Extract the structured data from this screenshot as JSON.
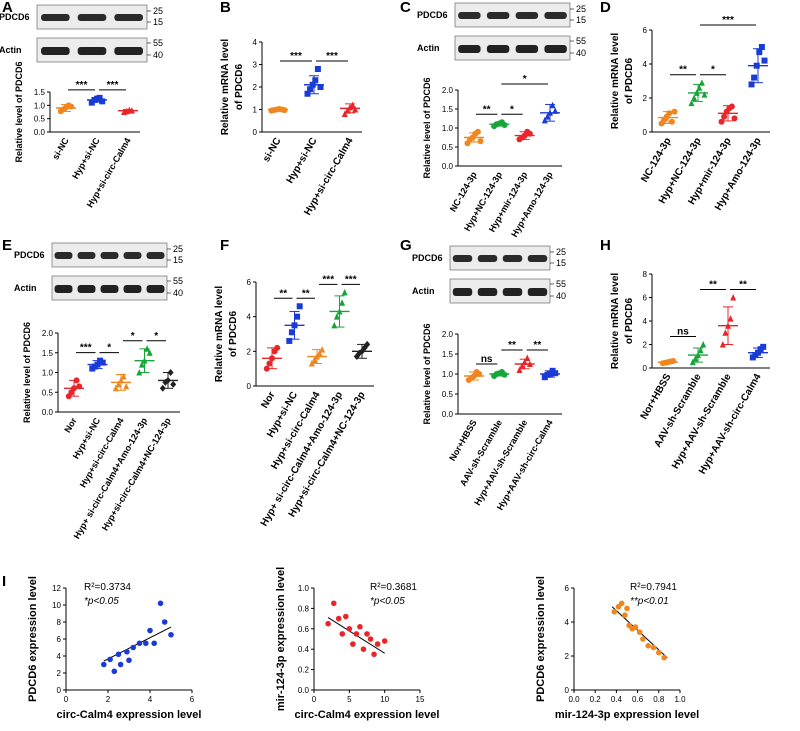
{
  "figure": {
    "A": {
      "label": "A",
      "type": "blot+scatter",
      "blot_gene": "PDCD6",
      "blot_ctrl": "Actin",
      "mw_top": [
        "25",
        "15"
      ],
      "mw_bot": [
        "55",
        "40"
      ],
      "ylabel": "Relative level of PDCD6",
      "ylim": [
        0,
        1.5
      ],
      "yticks": [
        "0.0",
        "0.5",
        "1.0",
        "1.5"
      ],
      "categories": [
        "si-NC",
        "Hyp+si-NC",
        "Hyp+si-circ-Calm4"
      ],
      "colors": [
        "#F0861E",
        "#1A3BD4",
        "#E8262A"
      ],
      "markers": [
        "circle",
        "square",
        "triangle"
      ],
      "means": [
        0.9,
        1.2,
        0.8
      ],
      "sd": [
        0.13,
        0.08,
        0.04
      ],
      "points": [
        [
          0.78,
          0.85,
          0.92,
          1.0,
          0.95
        ],
        [
          1.1,
          1.2,
          1.25,
          1.28,
          1.15
        ],
        [
          0.75,
          0.78,
          0.82,
          0.8
        ]
      ],
      "sig": [
        {
          "from": 0,
          "to": 1,
          "label": "***"
        },
        {
          "from": 1,
          "to": 2,
          "label": "***"
        }
      ]
    },
    "B": {
      "label": "B",
      "type": "scatter",
      "ylabel": [
        "Relative mRNA level",
        "of PDCD6"
      ],
      "ylim": [
        0,
        4
      ],
      "yticks": [
        "0",
        "1",
        "2",
        "3",
        "4"
      ],
      "categories": [
        "si-NC",
        "Hyp+si-NC",
        "Hyp+si-circ-Calm4"
      ],
      "colors": [
        "#F0861E",
        "#1A3BD4",
        "#E8262A"
      ],
      "markers": [
        "circle",
        "square",
        "triangle"
      ],
      "means": [
        1.0,
        2.1,
        1.05
      ],
      "sd": [
        0.05,
        0.4,
        0.2
      ],
      "points": [
        [
          0.95,
          0.98,
          1.0,
          1.02,
          1.0,
          0.97
        ],
        [
          1.7,
          1.9,
          2.1,
          2.3,
          2.8,
          2.0
        ],
        [
          0.8,
          0.95,
          1.1,
          1.2,
          1.0
        ]
      ],
      "sig": [
        {
          "from": 0,
          "to": 1,
          "label": "***"
        },
        {
          "from": 1,
          "to": 2,
          "label": "***"
        }
      ]
    },
    "C": {
      "label": "C",
      "type": "blot+scatter",
      "blot_gene": "PDCD6",
      "blot_ctrl": "Actin",
      "mw_top": [
        "25",
        "15"
      ],
      "mw_bot": [
        "55",
        "40"
      ],
      "ylabel": "Relative  level of PDCD6",
      "ylim": [
        0,
        2.0
      ],
      "yticks": [
        "0.0",
        "0.5",
        "1.0",
        "1.5",
        "2.0"
      ],
      "categories": [
        "NC-124-3p",
        "Hyp+NC-124-3p",
        "Hyp+mir-124-3p",
        "Hyp+Amo-124-3p"
      ],
      "colors": [
        "#F0861E",
        "#17A53A",
        "#E8262A",
        "#1A3BD4"
      ],
      "markers": [
        "circle",
        "circle",
        "circle",
        "triangle"
      ],
      "means": [
        0.75,
        1.1,
        0.8,
        1.4
      ],
      "sd": [
        0.12,
        0.05,
        0.1,
        0.22
      ],
      "points": [
        [
          0.6,
          0.7,
          0.75,
          0.85,
          0.9,
          0.65
        ],
        [
          1.05,
          1.1,
          1.12,
          1.15,
          1.08
        ],
        [
          0.7,
          0.75,
          0.8,
          0.9,
          0.85
        ],
        [
          1.2,
          1.3,
          1.4,
          1.6,
          1.45
        ]
      ],
      "sig": [
        {
          "from": 0,
          "to": 1,
          "label": "**"
        },
        {
          "from": 1,
          "to": 2,
          "label": "*"
        },
        {
          "from": 1,
          "to": 3,
          "label": "*"
        }
      ]
    },
    "D": {
      "label": "D",
      "type": "scatter",
      "ylabel": [
        "Relative mRNA level",
        "of PDCD6"
      ],
      "ylim": [
        0,
        6
      ],
      "yticks": [
        "0",
        "2",
        "4",
        "6"
      ],
      "categories": [
        "NC-124-3p",
        "Hyp+NC-124-3p",
        "Hyp+mir-124-3p",
        "Hyp+Amo-124-3p"
      ],
      "colors": [
        "#F0861E",
        "#17A53A",
        "#E8262A",
        "#1A3BD4"
      ],
      "markers": [
        "circle",
        "triangle",
        "circle",
        "square"
      ],
      "means": [
        0.85,
        2.3,
        1.1,
        3.9
      ],
      "sd": [
        0.35,
        0.5,
        0.45,
        1.0
      ],
      "points": [
        [
          0.5,
          0.7,
          0.9,
          1.1,
          0.6,
          1.2
        ],
        [
          1.7,
          2.0,
          2.3,
          2.6,
          2.9,
          2.2
        ],
        [
          0.6,
          0.9,
          1.2,
          1.4,
          1.5,
          0.8
        ],
        [
          2.8,
          3.2,
          3.9,
          4.7,
          5.0,
          4.2
        ]
      ],
      "sig": [
        {
          "from": 0,
          "to": 1,
          "label": "**"
        },
        {
          "from": 1,
          "to": 2,
          "label": "*"
        },
        {
          "from": 1,
          "to": 3,
          "label": "***"
        }
      ]
    },
    "E": {
      "label": "E",
      "type": "blot+scatter",
      "blot_gene": "PDCD6",
      "blot_ctrl": "Actin",
      "mw_top": [
        "25",
        "15"
      ],
      "mw_bot": [
        "55",
        "40"
      ],
      "ylabel": "Relative  level of PDCD6",
      "ylim": [
        0,
        2.0
      ],
      "yticks": [
        "0.0",
        "0.5",
        "1.0",
        "1.5",
        "2.0"
      ],
      "categories": [
        "Nor",
        "Hyp+si-NC",
        "Hyp+si-circ-Calm4",
        "Hyp+ si-circ-Calm4+Amo-124-3p",
        "Hyp+si-circ-Calm4+NC-124-3p"
      ],
      "colors": [
        "#E8262A",
        "#1A3BD4",
        "#F0861E",
        "#17A53A",
        "#222222"
      ],
      "markers": [
        "circle",
        "square",
        "triangle",
        "triangle",
        "diamond"
      ],
      "means": [
        0.6,
        1.2,
        0.75,
        1.3,
        0.8
      ],
      "sd": [
        0.2,
        0.1,
        0.2,
        0.3,
        0.2
      ],
      "points": [
        [
          0.4,
          0.5,
          0.6,
          0.8,
          0.65
        ],
        [
          1.1,
          1.15,
          1.2,
          1.3,
          1.25
        ],
        [
          0.6,
          0.7,
          0.8,
          0.9,
          0.65
        ],
        [
          1.0,
          1.2,
          1.3,
          1.6,
          1.5
        ],
        [
          0.6,
          0.75,
          0.8,
          1.0,
          0.7
        ]
      ],
      "sig": [
        {
          "from": 0,
          "to": 1,
          "label": "***"
        },
        {
          "from": 1,
          "to": 2,
          "label": "*"
        },
        {
          "from": 2,
          "to": 3,
          "label": "*"
        },
        {
          "from": 3,
          "to": 4,
          "label": "*"
        }
      ]
    },
    "F": {
      "label": "F",
      "type": "scatter",
      "ylabel": [
        "Relative mRNA level",
        "of PDCD6"
      ],
      "ylim": [
        0,
        6
      ],
      "yticks": [
        "0",
        "2",
        "4",
        "6"
      ],
      "categories": [
        "Nor",
        "Hyp+si-NC",
        "Hyp+si-circ-Calm4",
        "Hyp+ si-circ-Calm4+Amo-124-3p",
        "Hyp+si-circ-Calm4+NC-124-3p"
      ],
      "colors": [
        "#E8262A",
        "#1A3BD4",
        "#F0861E",
        "#17A53A",
        "#222222"
      ],
      "markers": [
        "circle",
        "square",
        "triangle",
        "triangle",
        "diamond"
      ],
      "means": [
        1.6,
        3.5,
        1.7,
        4.3,
        2.0
      ],
      "sd": [
        0.6,
        0.8,
        0.4,
        0.9,
        0.4
      ],
      "points": [
        [
          1.0,
          1.3,
          1.6,
          2.0,
          2.2
        ],
        [
          2.6,
          3.1,
          3.5,
          4.0,
          4.6
        ],
        [
          1.3,
          1.5,
          1.7,
          1.9,
          2.1
        ],
        [
          3.5,
          4.0,
          4.3,
          4.8,
          5.4
        ],
        [
          1.7,
          1.9,
          2.0,
          2.2,
          2.4
        ]
      ],
      "sig": [
        {
          "from": 0,
          "to": 1,
          "label": "**"
        },
        {
          "from": 1,
          "to": 2,
          "label": "**"
        },
        {
          "from": 2,
          "to": 3,
          "label": "***"
        },
        {
          "from": 3,
          "to": 4,
          "label": "***"
        }
      ]
    },
    "G": {
      "label": "G",
      "type": "blot+scatter",
      "blot_gene": "PDCD6",
      "blot_ctrl": "Actin",
      "mw_top": [
        "25",
        "15"
      ],
      "mw_bot": [
        "55",
        "40"
      ],
      "ylabel": "Relative  level of PDCD6",
      "ylim": [
        0,
        2.0
      ],
      "yticks": [
        "0.0",
        "0.5",
        "1.0",
        "1.5",
        "2.0"
      ],
      "categories": [
        "Nor+HBSS",
        "AAV-sh-Scramble",
        "Hyp+AAV-sh-Scramble",
        "Hyp+AAV-sh-circ-Calm4"
      ],
      "colors": [
        "#F0861E",
        "#17A53A",
        "#E8262A",
        "#1A3BD4"
      ],
      "markers": [
        "circle",
        "circle",
        "triangle",
        "square"
      ],
      "means": [
        0.95,
        1.0,
        1.25,
        1.0
      ],
      "sd": [
        0.1,
        0.05,
        0.12,
        0.08
      ],
      "points": [
        [
          0.85,
          0.9,
          0.95,
          1.05,
          1.0
        ],
        [
          0.95,
          1.0,
          1.02,
          1.05,
          0.98
        ],
        [
          1.1,
          1.2,
          1.3,
          1.4,
          1.25
        ],
        [
          0.92,
          0.98,
          1.0,
          1.08,
          1.02
        ]
      ],
      "sig": [
        {
          "from": 0,
          "to": 1,
          "label": "ns"
        },
        {
          "from": 1,
          "to": 2,
          "label": "**"
        },
        {
          "from": 2,
          "to": 3,
          "label": "**"
        }
      ]
    },
    "H": {
      "label": "H",
      "type": "scatter",
      "ylabel": [
        "Relative mRNA level",
        "of PDCD6"
      ],
      "ylim": [
        0,
        8
      ],
      "yticks": [
        "0",
        "2",
        "4",
        "6",
        "8"
      ],
      "categories": [
        "Nor+HBSS",
        "AAV-sh-Scramble",
        "Hyp+AAV-sh-Scramble",
        "Hyp+AAV-sh-circ-Calm4"
      ],
      "colors": [
        "#F0861E",
        "#17A53A",
        "#E8262A",
        "#1A3BD4"
      ],
      "markers": [
        "circle",
        "triangle",
        "triangle",
        "square"
      ],
      "means": [
        0.5,
        1.1,
        3.6,
        1.3
      ],
      "sd": [
        0.1,
        0.6,
        1.6,
        0.4
      ],
      "points": [
        [
          0.4,
          0.45,
          0.5,
          0.55,
          0.6
        ],
        [
          0.5,
          0.8,
          1.1,
          1.5,
          2.0
        ],
        [
          2.0,
          3.0,
          3.6,
          4.2,
          6.0
        ],
        [
          0.9,
          1.1,
          1.3,
          1.6,
          1.8
        ]
      ],
      "sig": [
        {
          "from": 0,
          "to": 1,
          "label": "ns"
        },
        {
          "from": 1,
          "to": 2,
          "label": "**"
        },
        {
          "from": 2,
          "to": 3,
          "label": "**"
        }
      ]
    }
  },
  "correlation_label": "I",
  "chart_data": [
    {
      "type": "scatter",
      "color": "#1A3BD4",
      "xlabel": "circ-Calm4 expression level",
      "ylabel": "PDCD6 expression level",
      "xlim": [
        0,
        6
      ],
      "ylim": [
        0,
        12
      ],
      "xticks": [
        "0",
        "2",
        "4",
        "6"
      ],
      "yticks": [
        "0",
        "2",
        "4",
        "6",
        "8",
        "10",
        "12"
      ],
      "r2": "R²=0.3734",
      "p": "*p<0.05",
      "x": [
        1.8,
        2.1,
        2.3,
        2.5,
        2.6,
        2.9,
        3.0,
        3.2,
        3.5,
        3.8,
        4.0,
        4.2,
        4.5,
        4.7,
        5.0
      ],
      "y": [
        3.0,
        3.6,
        2.2,
        4.2,
        3.0,
        4.5,
        3.5,
        5.0,
        5.5,
        5.5,
        7.0,
        5.5,
        10.2,
        8.0,
        6.5
      ],
      "fit": [
        [
          1.8,
          3.4
        ],
        [
          5.0,
          7.4
        ]
      ]
    },
    {
      "type": "scatter",
      "color": "#E8262A",
      "xlabel": "circ-Calm4 expression level",
      "ylabel": "mir-124-3p expression level",
      "xlim": [
        0,
        15
      ],
      "ylim": [
        0.0,
        1.0
      ],
      "xticks": [
        "0",
        "5",
        "10",
        "15"
      ],
      "yticks": [
        "0.0",
        "0.2",
        "0.4",
        "0.6",
        "0.8",
        "1.0"
      ],
      "r2": "R²=0.3681",
      "p": "*p<0.05",
      "x": [
        2.0,
        2.8,
        3.5,
        4.0,
        4.5,
        5.0,
        5.5,
        6.0,
        6.5,
        7.0,
        7.5,
        8.0,
        8.5,
        9.0,
        10.0
      ],
      "y": [
        0.65,
        0.85,
        0.7,
        0.55,
        0.72,
        0.6,
        0.45,
        0.55,
        0.62,
        0.4,
        0.55,
        0.5,
        0.35,
        0.45,
        0.48
      ],
      "fit": [
        [
          2.0,
          0.71
        ],
        [
          10.0,
          0.36
        ]
      ]
    },
    {
      "type": "scatter",
      "color": "#F0861E",
      "xlabel": "mir-124-3p expression level",
      "ylabel": "PDCD6 expression level",
      "xlim": [
        0.0,
        1.0
      ],
      "ylim": [
        0,
        6
      ],
      "xticks": [
        "0.0",
        "0.2",
        "0.4",
        "0.6",
        "0.8",
        "1.0"
      ],
      "yticks": [
        "0",
        "2",
        "4",
        "6"
      ],
      "r2": "R²=0.7941",
      "p": "**p<0.01",
      "x": [
        0.38,
        0.42,
        0.45,
        0.48,
        0.5,
        0.52,
        0.55,
        0.58,
        0.62,
        0.65,
        0.7,
        0.75,
        0.8,
        0.85
      ],
      "y": [
        4.6,
        4.9,
        5.1,
        4.4,
        4.8,
        3.8,
        3.6,
        3.7,
        3.4,
        3.0,
        2.6,
        2.5,
        2.2,
        1.9
      ],
      "fit": [
        [
          0.36,
          4.9
        ],
        [
          0.88,
          1.9
        ]
      ]
    }
  ]
}
